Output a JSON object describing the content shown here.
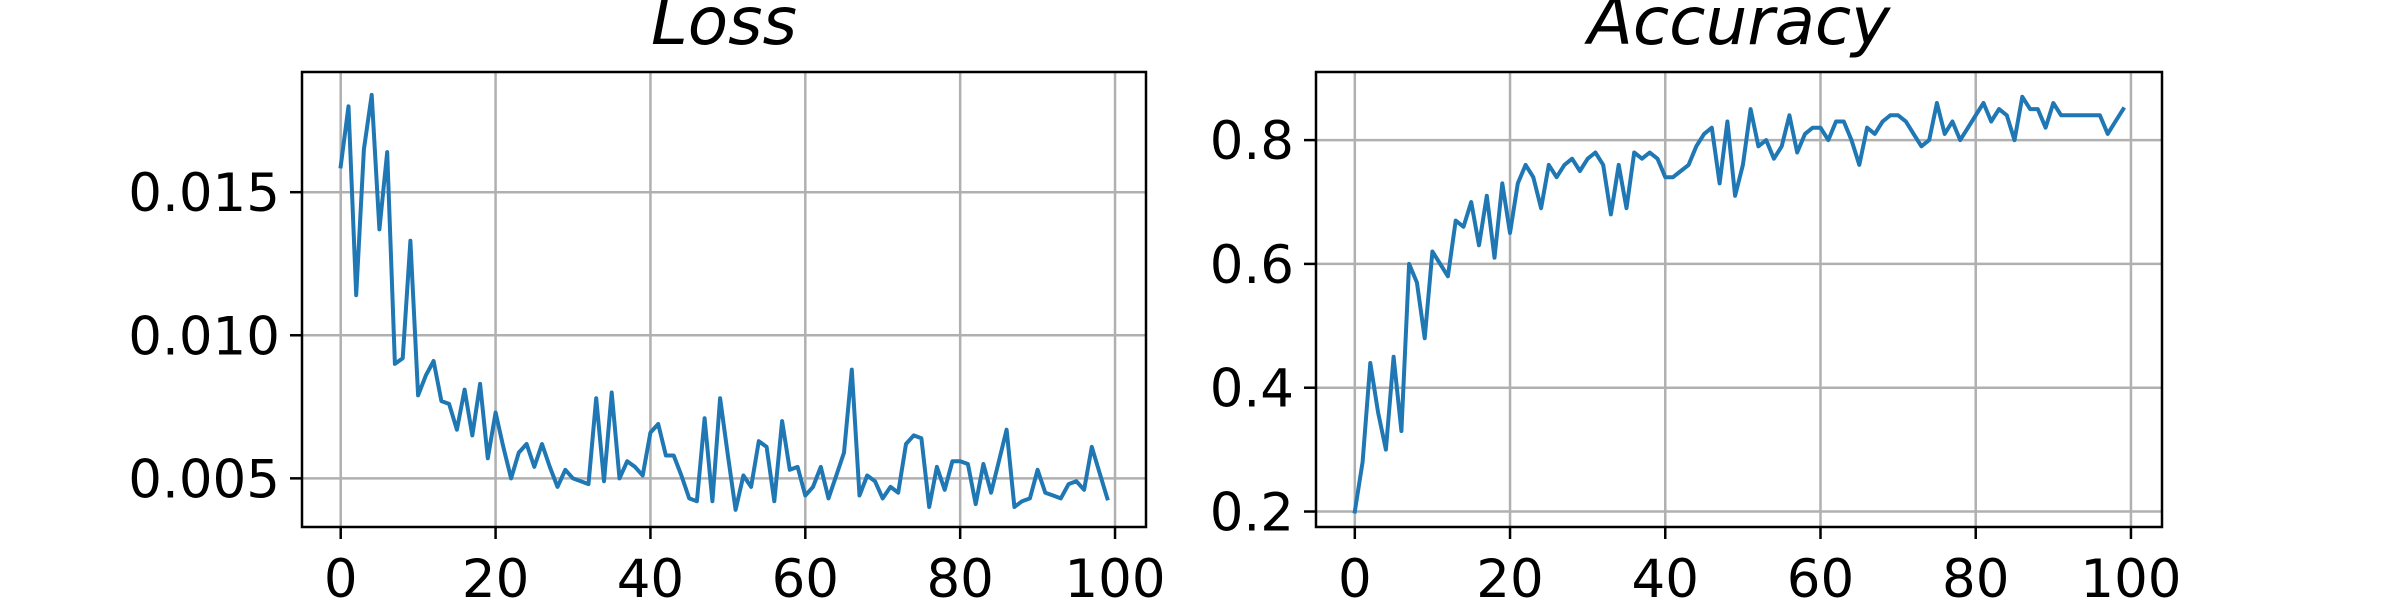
{
  "chart_data": [
    {
      "type": "line",
      "title": "Loss",
      "xlabel": "",
      "ylabel": "",
      "xlim": [
        -5,
        104
      ],
      "ylim": [
        0.0033,
        0.0192
      ],
      "xticks": [
        0,
        20,
        40,
        60,
        80,
        100
      ],
      "xtick_labels": [
        "0",
        "20",
        "40",
        "60",
        "80",
        "100"
      ],
      "yticks": [
        0.005,
        0.01,
        0.015
      ],
      "ytick_labels": [
        "0.005",
        "0.010",
        "0.015"
      ],
      "grid": true,
      "color": "#1f77b4",
      "series": [
        {
          "x": [
            0,
            1,
            2,
            3,
            4,
            5,
            6,
            7,
            8,
            9,
            10,
            11,
            12,
            13,
            14,
            15,
            16,
            17,
            18,
            19,
            20,
            21,
            22,
            23,
            24,
            25,
            26,
            27,
            28,
            29,
            30,
            31,
            32,
            33,
            34,
            35,
            36,
            37,
            38,
            39,
            40,
            41,
            42,
            43,
            44,
            45,
            46,
            47,
            48,
            49,
            50,
            51,
            52,
            53,
            54,
            55,
            56,
            57,
            58,
            59,
            60,
            61,
            62,
            63,
            64,
            65,
            66,
            67,
            68,
            69,
            70,
            71,
            72,
            73,
            74,
            75,
            76,
            77,
            78,
            79,
            80,
            81,
            82,
            83,
            84,
            85,
            86,
            87,
            88,
            89,
            90,
            91,
            92,
            93,
            94,
            95,
            96,
            97,
            98,
            99
          ],
          "y": [
            0.0159,
            0.018,
            0.0114,
            0.0165,
            0.0184,
            0.0137,
            0.0164,
            0.009,
            0.0092,
            0.0133,
            0.0079,
            0.0086,
            0.0091,
            0.0077,
            0.0076,
            0.0067,
            0.0081,
            0.0065,
            0.0083,
            0.0057,
            0.0073,
            0.0061,
            0.005,
            0.0059,
            0.0062,
            0.0054,
            0.0062,
            0.0054,
            0.0047,
            0.0053,
            0.005,
            0.0049,
            0.0048,
            0.0078,
            0.0049,
            0.008,
            0.005,
            0.0056,
            0.0054,
            0.0051,
            0.0066,
            0.0069,
            0.0058,
            0.0058,
            0.0051,
            0.0043,
            0.0042,
            0.0071,
            0.0042,
            0.0078,
            0.0058,
            0.0039,
            0.0051,
            0.0047,
            0.0063,
            0.0061,
            0.0042,
            0.007,
            0.0053,
            0.0054,
            0.0044,
            0.0047,
            0.0054,
            0.0043,
            0.0051,
            0.0059,
            0.0088,
            0.0044,
            0.0051,
            0.0049,
            0.0043,
            0.0047,
            0.0045,
            0.0062,
            0.0065,
            0.0064,
            0.004,
            0.0054,
            0.0046,
            0.0056,
            0.0056,
            0.0055,
            0.0041,
            0.0055,
            0.0045,
            0.0056,
            0.0067,
            0.004,
            0.0042,
            0.0043,
            0.0053,
            0.0045,
            0.0044,
            0.0043,
            0.0048,
            0.0049,
            0.0046,
            0.0061,
            0.0052,
            0.0043
          ]
        }
      ]
    },
    {
      "type": "line",
      "title": "Accuracy",
      "xlabel": "",
      "ylabel": "",
      "xlim": [
        -5,
        104
      ],
      "ylim": [
        0.175,
        0.91
      ],
      "xticks": [
        0,
        20,
        40,
        60,
        80,
        100
      ],
      "xtick_labels": [
        "0",
        "20",
        "40",
        "60",
        "80",
        "100"
      ],
      "yticks": [
        0.2,
        0.4,
        0.6,
        0.8
      ],
      "ytick_labels": [
        "0.2",
        "0.4",
        "0.6",
        "0.8"
      ],
      "grid": true,
      "color": "#1f77b4",
      "series": [
        {
          "x": [
            0,
            1,
            2,
            3,
            4,
            5,
            6,
            7,
            8,
            9,
            10,
            11,
            12,
            13,
            14,
            15,
            16,
            17,
            18,
            19,
            20,
            21,
            22,
            23,
            24,
            25,
            26,
            27,
            28,
            29,
            30,
            31,
            32,
            33,
            34,
            35,
            36,
            37,
            38,
            39,
            40,
            41,
            42,
            43,
            44,
            45,
            46,
            47,
            48,
            49,
            50,
            51,
            52,
            53,
            54,
            55,
            56,
            57,
            58,
            59,
            60,
            61,
            62,
            63,
            64,
            65,
            66,
            67,
            68,
            69,
            70,
            71,
            72,
            73,
            74,
            75,
            76,
            77,
            78,
            79,
            80,
            81,
            82,
            83,
            84,
            85,
            86,
            87,
            88,
            89,
            90,
            91,
            92,
            93,
            94,
            95,
            96,
            97,
            98,
            99
          ],
          "y": [
            0.2,
            0.28,
            0.44,
            0.36,
            0.3,
            0.45,
            0.33,
            0.6,
            0.57,
            0.48,
            0.62,
            0.6,
            0.58,
            0.67,
            0.66,
            0.7,
            0.63,
            0.71,
            0.61,
            0.73,
            0.65,
            0.73,
            0.76,
            0.74,
            0.69,
            0.76,
            0.74,
            0.76,
            0.77,
            0.75,
            0.77,
            0.78,
            0.76,
            0.68,
            0.76,
            0.69,
            0.78,
            0.77,
            0.78,
            0.77,
            0.74,
            0.74,
            0.75,
            0.76,
            0.79,
            0.81,
            0.82,
            0.73,
            0.83,
            0.71,
            0.76,
            0.85,
            0.79,
            0.8,
            0.77,
            0.79,
            0.84,
            0.78,
            0.81,
            0.82,
            0.82,
            0.8,
            0.83,
            0.83,
            0.8,
            0.76,
            0.82,
            0.81,
            0.83,
            0.84,
            0.84,
            0.83,
            0.81,
            0.79,
            0.8,
            0.86,
            0.81,
            0.83,
            0.8,
            0.82,
            0.84,
            0.86,
            0.83,
            0.85,
            0.84,
            0.8,
            0.87,
            0.85,
            0.85,
            0.82,
            0.86,
            0.84,
            0.84,
            0.84,
            0.84,
            0.84,
            0.84,
            0.81,
            0.83,
            0.85
          ]
        }
      ]
    }
  ]
}
